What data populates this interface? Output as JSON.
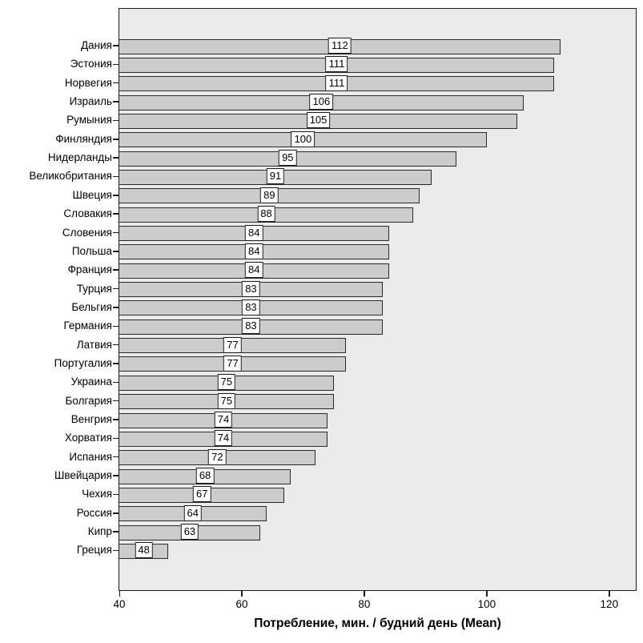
{
  "chart_data": {
    "type": "bar",
    "orientation": "horizontal",
    "xlabel": "Потребление, мин. / будний день (Mean)",
    "categories": [
      "Дания",
      "Эстония",
      "Норвегия",
      "Израиль",
      "Румыния",
      "Финляндия",
      "Нидерланды",
      "Великобритания",
      "Швеция",
      "Словакия",
      "Словения",
      "Польша",
      "Франция",
      "Турция",
      "Бельгия",
      "Германия",
      "Латвия",
      "Португалия",
      "Украина",
      "Болгария",
      "Венгрия",
      "Хорватия",
      "Испания",
      "Швейцария",
      "Чехия",
      "Россия",
      "Кипр",
      "Греция"
    ],
    "values": [
      112,
      111,
      111,
      106,
      105,
      100,
      95,
      91,
      89,
      88,
      84,
      84,
      84,
      83,
      83,
      83,
      77,
      77,
      75,
      75,
      74,
      74,
      72,
      68,
      67,
      64,
      63,
      48
    ],
    "bar_value_labels_shown": true,
    "x_ticks": [
      40,
      60,
      80,
      100,
      120
    ],
    "xlim": [
      40,
      124.6
    ],
    "grid": false,
    "legend_position": "none",
    "colors": {
      "plot_background": "#ebebeb",
      "bar_fill": "#cccccc",
      "bar_border": "#2a2a2a",
      "value_box_background": "#ffffff",
      "frame_border": "#1a1a1a",
      "text": "#000000",
      "page_background": "#ffffff"
    }
  }
}
